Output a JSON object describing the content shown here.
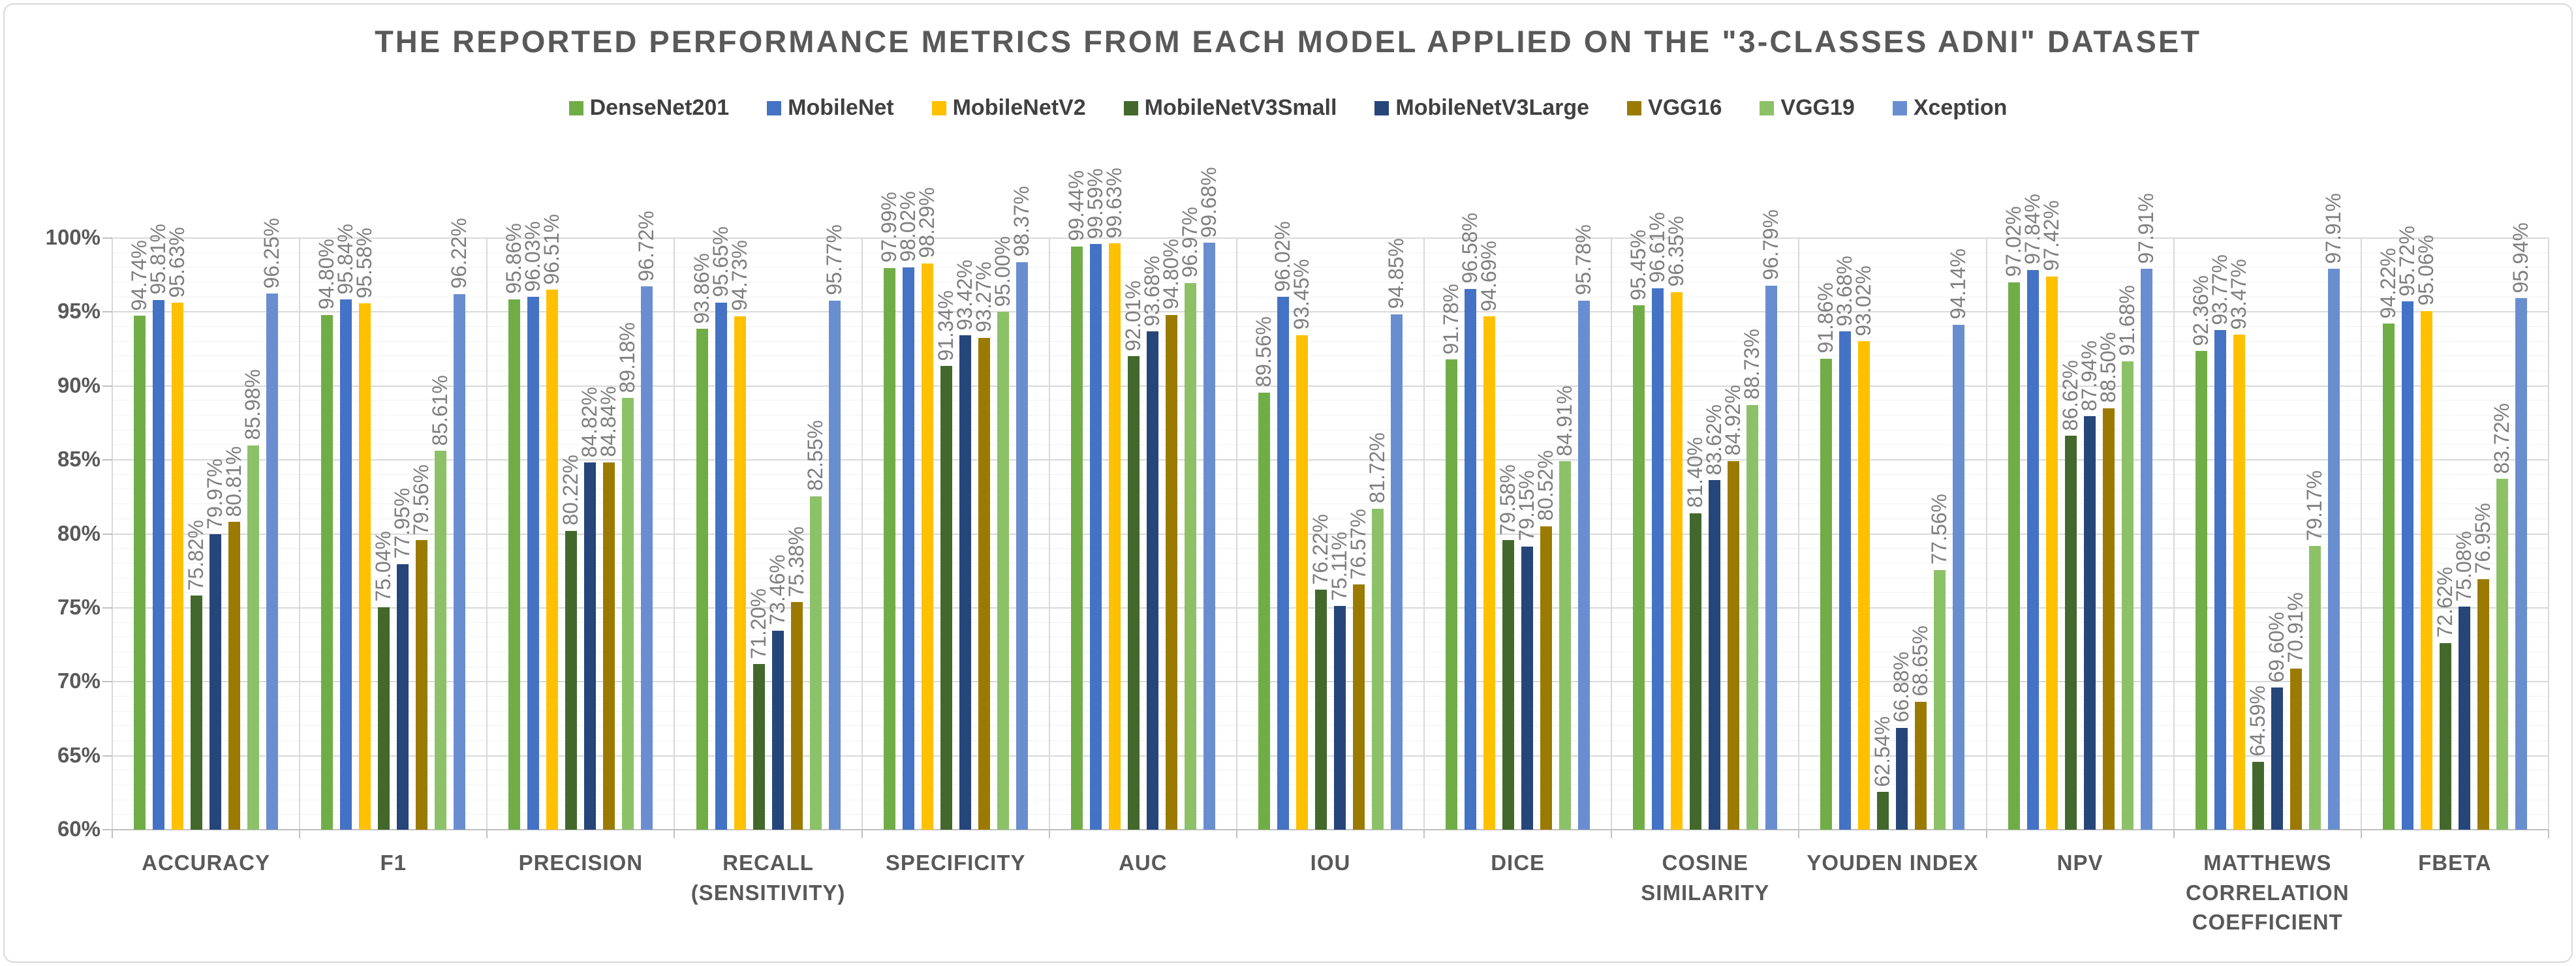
{
  "title": "THE REPORTED PERFORMANCE METRICS FROM EACH MODEL APPLIED ON THE \"3-CLASSES ADNI\" DATASET",
  "colors": {
    "title_text": "#595959",
    "axis_text": "#595959",
    "legend_text": "#404040",
    "data_label_text": "#7f7f7f",
    "gridline_major": "#d9d9d9",
    "gridline_minor": "#f1f1f1",
    "axis_line": "#c0c0c0"
  },
  "chart_data": {
    "type": "bar",
    "title": "THE REPORTED PERFORMANCE METRICS FROM EACH MODEL APPLIED ON THE \"3-CLASSES ADNI\" DATASET",
    "xlabel": "",
    "ylabel": "",
    "ylim": [
      60,
      100
    ],
    "y_major_step": 5,
    "y_minor_step": 1,
    "y_ticks": [
      "60%",
      "65%",
      "70%",
      "75%",
      "80%",
      "85%",
      "90%",
      "95%",
      "100%"
    ],
    "grid": true,
    "legend_position": "top",
    "data_label_format": "0.00%",
    "categories": [
      "ACCURACY",
      "F1",
      "PRECISION",
      "RECALL (SENSITIVITY)",
      "SPECIFICITY",
      "AUC",
      "IOU",
      "DICE",
      "COSINE SIMILARITY",
      "YOUDEN INDEX",
      "NPV",
      "MATTHEWS CORRELATION COEFFICIENT",
      "FBETA"
    ],
    "series": [
      {
        "name": "DenseNet201",
        "color": "#70AD47",
        "values": [
          94.74,
          94.8,
          95.86,
          93.86,
          97.99,
          99.44,
          89.56,
          91.78,
          95.45,
          91.86,
          97.02,
          92.36,
          94.22
        ]
      },
      {
        "name": "MobileNet",
        "color": "#4472C4",
        "values": [
          95.81,
          95.84,
          96.03,
          95.65,
          98.02,
          99.59,
          96.02,
          96.58,
          96.61,
          93.68,
          97.84,
          93.77,
          95.72
        ]
      },
      {
        "name": "MobileNetV2",
        "color": "#FFC000",
        "values": [
          95.63,
          95.58,
          96.51,
          94.73,
          98.29,
          99.63,
          93.45,
          94.69,
          96.35,
          93.02,
          97.42,
          93.47,
          95.06
        ]
      },
      {
        "name": "MobileNetV3Small",
        "color": "#43682B",
        "values": [
          75.82,
          75.04,
          80.22,
          71.2,
          91.34,
          92.01,
          76.22,
          79.58,
          81.4,
          62.54,
          86.62,
          64.59,
          72.62
        ]
      },
      {
        "name": "MobileNetV3Large",
        "color": "#264579",
        "values": [
          79.97,
          77.95,
          84.82,
          73.46,
          93.42,
          93.68,
          75.11,
          79.15,
          83.62,
          66.88,
          87.94,
          69.6,
          75.08
        ]
      },
      {
        "name": "VGG16",
        "color": "#9B7A01",
        "values": [
          80.81,
          79.56,
          84.84,
          75.38,
          93.27,
          94.8,
          76.57,
          80.52,
          84.92,
          68.65,
          88.5,
          70.91,
          76.95
        ]
      },
      {
        "name": "VGG19",
        "color": "#8DC168",
        "values": [
          85.98,
          85.61,
          89.18,
          82.55,
          95.0,
          96.97,
          81.72,
          84.91,
          88.73,
          77.56,
          91.68,
          79.17,
          83.72
        ]
      },
      {
        "name": "Xception",
        "color": "#698ED0",
        "values": [
          96.25,
          96.22,
          96.72,
          95.77,
          98.37,
          99.68,
          94.85,
          95.78,
          96.79,
          94.14,
          97.91,
          97.91,
          95.94
        ]
      }
    ]
  }
}
